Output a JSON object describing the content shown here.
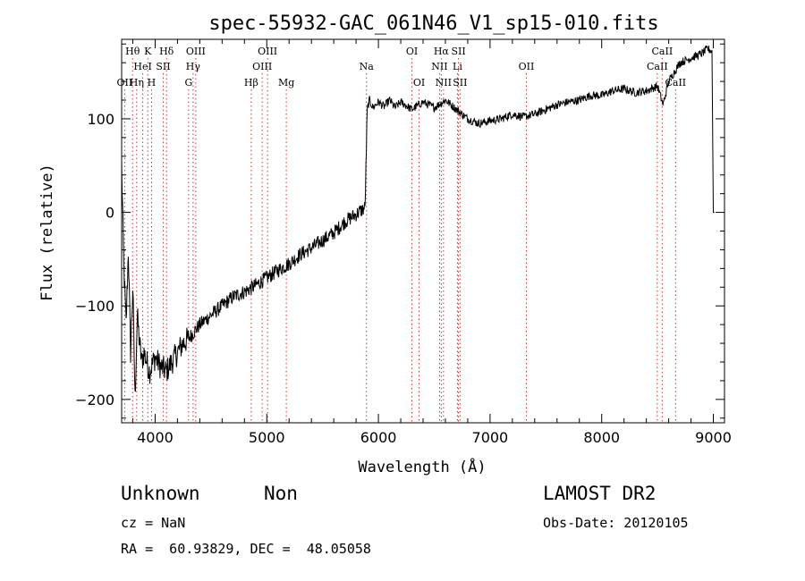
{
  "chart_data": {
    "type": "line",
    "title": "spec-55932-GAC_061N46_V1_sp15-010.fits",
    "xlabel": "Wavelength (Å)",
    "ylabel": "Flux (relative)",
    "xlim": [
      3700,
      9100
    ],
    "ylim": [
      -225,
      185
    ],
    "xticks": [
      4000,
      5000,
      6000,
      7000,
      8000,
      9000
    ],
    "yticks": [
      -200,
      -100,
      0,
      100
    ],
    "grid": false,
    "series": [
      {
        "color": "#000000",
        "x": [
          3700,
          3720,
          3740,
          3760,
          3780,
          3800,
          3820,
          3840,
          3860,
          3880,
          3900,
          3950,
          4000,
          4050,
          4100,
          4150,
          4200,
          4250,
          4300,
          4400,
          4500,
          4600,
          4700,
          4800,
          4900,
          5000,
          5100,
          5200,
          5300,
          5400,
          5500,
          5600,
          5700,
          5800,
          5880,
          5900,
          5920,
          5950,
          6000,
          6050,
          6100,
          6150,
          6200,
          6300,
          6400,
          6500,
          6600,
          6700,
          6800,
          6900,
          7000,
          7100,
          7200,
          7300,
          7400,
          7500,
          7600,
          7700,
          7800,
          7900,
          8000,
          8100,
          8200,
          8300,
          8400,
          8500,
          8550,
          8600,
          8650,
          8700,
          8800,
          8900,
          8950,
          8990,
          9000,
          9010
        ],
        "y": [
          50,
          -60,
          -120,
          -40,
          -150,
          -80,
          -200,
          -110,
          -140,
          -160,
          -150,
          -170,
          -155,
          -165,
          -170,
          -160,
          -150,
          -140,
          -135,
          -120,
          -110,
          -100,
          -90,
          -85,
          -78,
          -70,
          -62,
          -55,
          -45,
          -38,
          -30,
          -22,
          -10,
          -2,
          5,
          110,
          120,
          112,
          118,
          113,
          120,
          112,
          118,
          110,
          118,
          112,
          120,
          110,
          100,
          95,
          98,
          100,
          105,
          102,
          105,
          110,
          115,
          118,
          120,
          125,
          125,
          130,
          132,
          128,
          130,
          135,
          115,
          140,
          150,
          160,
          165,
          170,
          175,
          172,
          0,
          0
        ]
      }
    ],
    "line_markers": [
      {
        "label": "Hθ",
        "x": 3798,
        "row": 0
      },
      {
        "label": "K",
        "x": 3934,
        "row": 0
      },
      {
        "label": "Hδ",
        "x": 4102,
        "row": 0
      },
      {
        "label": "OIII",
        "x": 4364,
        "row": 0
      },
      {
        "label": "OIII",
        "x": 5007,
        "row": 0
      },
      {
        "label": "OI",
        "x": 6300,
        "row": 0
      },
      {
        "label": "Hα",
        "x": 6563,
        "row": 0
      },
      {
        "label": "SII",
        "x": 6717,
        "row": 0
      },
      {
        "label": "CaII",
        "x": 8542,
        "row": 0
      },
      {
        "label": "HeI",
        "x": 3889,
        "row": 1
      },
      {
        "label": "SII",
        "x": 4072,
        "row": 1
      },
      {
        "label": "Hγ",
        "x": 4340,
        "row": 1
      },
      {
        "label": "OIII",
        "x": 4959,
        "row": 1
      },
      {
        "label": "Na",
        "x": 5893,
        "row": 1
      },
      {
        "label": "NII",
        "x": 6548,
        "row": 1
      },
      {
        "label": "Li",
        "x": 6708,
        "row": 1
      },
      {
        "label": "OII",
        "x": 7325,
        "row": 1
      },
      {
        "label": "CaII",
        "x": 8498,
        "row": 1
      },
      {
        "label": "OII",
        "x": 3727,
        "row": 2
      },
      {
        "label": "Hη",
        "x": 3835,
        "row": 2
      },
      {
        "label": "H",
        "x": 3968,
        "row": 2
      },
      {
        "label": "G",
        "x": 4300,
        "row": 2
      },
      {
        "label": "Hβ",
        "x": 4861,
        "row": 2
      },
      {
        "label": "Mg",
        "x": 5175,
        "row": 2
      },
      {
        "label": "OI",
        "x": 6364,
        "row": 2
      },
      {
        "label": "NII",
        "x": 6583,
        "row": 2
      },
      {
        "label": "SII",
        "x": 6731,
        "row": 2
      },
      {
        "label": "CaII",
        "x": 8662,
        "row": 2
      }
    ]
  },
  "info": {
    "class": "Unknown",
    "subclass": "Non",
    "survey": "LAMOST DR2",
    "cz": "cz = NaN",
    "obs_date": "Obs-Date: 20120105",
    "coords": "RA =  60.93829, DEC =  48.05058"
  }
}
